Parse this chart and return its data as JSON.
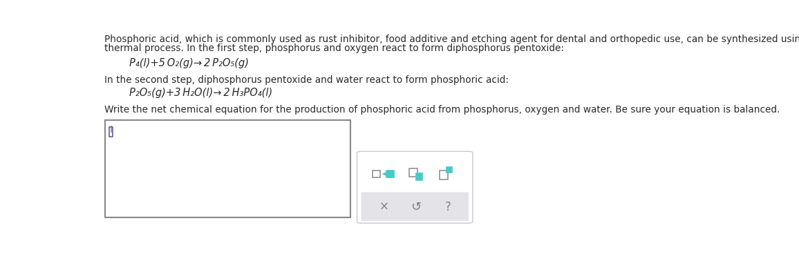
{
  "bg_color": "#ffffff",
  "text_color": "#2a2a2a",
  "dark_gray": "#555555",
  "para1_line1": "Phosphoric acid, which is commonly used as rust inhibitor, food additive and etching agent for dental and orthopedic use, can be synthesized using a two-step",
  "para1_line2": "thermal process. In the first step, phosphorus and oxygen react to form diphosphorus pentoxide:",
  "eq1": "P₄(l)+5 O₂(g)→ 2 P₂O₅(g)",
  "para2": "In the second step, diphosphorus pentoxide and water react to form phosphoric acid:",
  "eq2": "P₂O₅(g)+3 H₂O(l)→ 2 H₃PO₄(l)",
  "para3": "Write the net chemical equation for the production of phosphoric acid from phosphorus, oxygen and water. Be sure your equation is balanced.",
  "teal": "#4ac8c8",
  "teal_fill": "#4ac8c8",
  "gray_outline": "#9090a0",
  "gray_bg": "#e4e4e8",
  "toolbar_border": "#c8c8cc",
  "input_border": "#888888",
  "font_size_para": 9.8,
  "font_size_eq": 10.5,
  "font_size_icons": 10
}
